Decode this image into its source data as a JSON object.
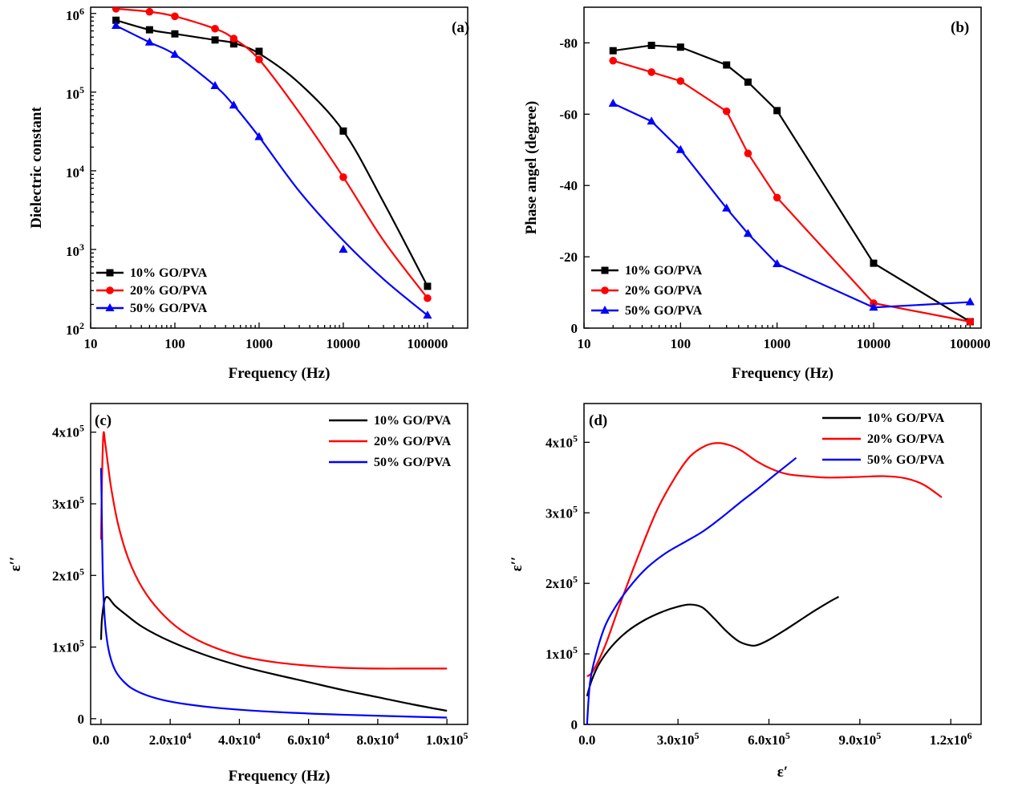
{
  "chart_data": [
    {
      "panel": "a",
      "type": "line",
      "label": "(a)",
      "xlabel": "Frequency (Hz)",
      "ylabel": "Dielectric constant",
      "xscale": "log",
      "yscale": "log",
      "xlim": [
        10,
        300000
      ],
      "ylim": [
        100,
        1200000
      ],
      "xticks": [
        10,
        100,
        1000,
        10000,
        100000
      ],
      "xtick_labels": [
        "10",
        "100",
        "1000",
        "10000",
        "100000"
      ],
      "yticks": [
        100,
        1000,
        10000,
        100000,
        1000000
      ],
      "ytick_base": "10",
      "ytick_exps": [
        "2",
        "3",
        "4",
        "5",
        "6"
      ],
      "legend_position": "bottom-left",
      "series": [
        {
          "name": "10% GO/PVA",
          "color": "#000000",
          "marker": "square",
          "x": [
            20,
            50,
            100,
            300,
            500,
            1000,
            10000,
            100000
          ],
          "y": [
            820000,
            620000,
            550000,
            460000,
            410000,
            330000,
            32000,
            340
          ],
          "fit": [
            [
              20,
              820000
            ],
            [
              50,
              620000
            ],
            [
              100,
              550000
            ],
            [
              300,
              460000
            ],
            [
              500,
              420000
            ],
            [
              1000,
              310000
            ],
            [
              3000,
              130000
            ],
            [
              10000,
              32000
            ],
            [
              30000,
              4000
            ],
            [
              100000,
              340
            ]
          ]
        },
        {
          "name": "20% GO/PVA",
          "color": "#ff0000",
          "marker": "circle",
          "x": [
            20,
            50,
            100,
            300,
            500,
            1000,
            10000,
            100000
          ],
          "y": [
            1150000,
            1050000,
            920000,
            640000,
            480000,
            260000,
            8300,
            240
          ],
          "fit": [
            [
              20,
              1150000
            ],
            [
              50,
              1050000
            ],
            [
              100,
              920000
            ],
            [
              300,
              640000
            ],
            [
              500,
              480000
            ],
            [
              1000,
              260000
            ],
            [
              3000,
              55000
            ],
            [
              10000,
              8300
            ],
            [
              30000,
              1300
            ],
            [
              100000,
              240
            ]
          ]
        },
        {
          "name": "50% GO/PVA",
          "color": "#0000ff",
          "marker": "triangle",
          "x": [
            20,
            50,
            100,
            300,
            500,
            1000,
            10000,
            100000
          ],
          "y": [
            700000,
            430000,
            300000,
            120000,
            68000,
            27000,
            1000,
            145
          ],
          "fit": [
            [
              20,
              700000
            ],
            [
              50,
              430000
            ],
            [
              100,
              300000
            ],
            [
              300,
              120000
            ],
            [
              500,
              68000
            ],
            [
              1000,
              27000
            ],
            [
              3000,
              5500
            ],
            [
              10000,
              1300
            ],
            [
              30000,
              420
            ],
            [
              100000,
              145
            ]
          ]
        }
      ]
    },
    {
      "panel": "b",
      "type": "line",
      "label": "(b)",
      "xlabel": "Frequency (Hz)",
      "ylabel": "Phase angel (degree)",
      "xscale": "log",
      "xlim": [
        10,
        130000
      ],
      "ylim": [
        0,
        -90
      ],
      "xticks": [
        10,
        100,
        1000,
        10000,
        100000
      ],
      "xtick_labels": [
        "10",
        "100",
        "1000",
        "10000",
        "100000"
      ],
      "yticks": [
        0,
        -20,
        -40,
        -60,
        -80
      ],
      "ytick_labels": [
        "0",
        "-20",
        "-40",
        "-60",
        "-80"
      ],
      "legend_position": "bottom-left",
      "series": [
        {
          "name": "10% GO/PVA",
          "color": "#000000",
          "marker": "square",
          "x": [
            20,
            50,
            100,
            300,
            500,
            1000,
            10000,
            100000
          ],
          "y": [
            -77.8,
            -79.3,
            -78.8,
            -73.8,
            -69.0,
            -61.0,
            -18.2,
            -1.8
          ]
        },
        {
          "name": "20% GO/PVA",
          "color": "#ff0000",
          "marker": "circle",
          "x": [
            20,
            50,
            100,
            300,
            500,
            1000,
            10000,
            100000
          ],
          "y": [
            -75.0,
            -71.8,
            -69.3,
            -60.8,
            -49.0,
            -36.6,
            -7.0,
            -1.8
          ]
        },
        {
          "name": "50% GO/PVA",
          "color": "#0000ff",
          "marker": "triangle",
          "x": [
            20,
            50,
            100,
            300,
            500,
            1000,
            10000,
            100000
          ],
          "y": [
            -63.0,
            -58.0,
            -50.0,
            -33.6,
            -26.5,
            -18.0,
            -5.8,
            -7.3
          ]
        }
      ]
    },
    {
      "panel": "c",
      "type": "line",
      "label": "(c)",
      "xlabel": "Frequency (Hz)",
      "ylabel": "ε′′",
      "xlim": [
        -3000,
        106000
      ],
      "ylim": [
        -8000,
        440000
      ],
      "xticks": [
        0,
        20000,
        40000,
        60000,
        80000,
        100000
      ],
      "xtick_labels": [
        "0.0",
        "2.0x10",
        "4.0x10",
        "6.0x10",
        "8.0x10",
        "1.0x10"
      ],
      "xtick_exps": [
        "",
        "4",
        "4",
        "4",
        "4",
        "5"
      ],
      "yticks": [
        0,
        100000,
        200000,
        300000,
        400000
      ],
      "ytick_labels": [
        "0",
        "1x10",
        "2x10",
        "3x10",
        "4x10"
      ],
      "ytick_exps": [
        "",
        "5",
        "5",
        "5",
        "5"
      ],
      "legend_position": "top-right",
      "series": [
        {
          "name": "10% GO/PVA",
          "color": "#000000",
          "x": [
            0,
            200,
            500,
            1000,
            1600,
            2500,
            4000,
            7000,
            12000,
            20000,
            30000,
            40000,
            50000,
            60000,
            70000,
            80000,
            90000,
            100000
          ],
          "y": [
            110000,
            135000,
            150000,
            165000,
            170000,
            167000,
            158000,
            146000,
            128000,
            108000,
            89000,
            74000,
            62000,
            51000,
            40000,
            30000,
            20000,
            11000
          ]
        },
        {
          "name": "20% GO/PVA",
          "color": "#ff0000",
          "x": [
            0,
            300,
            700,
            1200,
            2000,
            3000,
            5000,
            8000,
            12000,
            17000,
            23000,
            30000,
            40000,
            50000,
            60000,
            70000,
            80000,
            90000,
            100000
          ],
          "y": [
            250000,
            340000,
            398000,
            385000,
            355000,
            320000,
            270000,
            222000,
            182000,
            150000,
            124000,
            105000,
            88000,
            79000,
            74000,
            71000,
            70000,
            70000,
            70000
          ]
        },
        {
          "name": "50% GO/PVA",
          "color": "#0000ff",
          "x": [
            0,
            150,
            350,
            600,
            1000,
            1500,
            2200,
            3200,
            4500,
            6500,
            9000,
            13000,
            18000,
            25000,
            35000,
            50000,
            70000,
            100000
          ],
          "y": [
            350000,
            310000,
            240000,
            185000,
            145000,
            118000,
            96000,
            78000,
            64000,
            52000,
            42000,
            33000,
            26000,
            20000,
            14500,
            9500,
            5500,
            1500
          ]
        }
      ]
    },
    {
      "panel": "d",
      "type": "line",
      "label": "(d)",
      "xlabel": "ε′",
      "ylabel": "ε′′",
      "xlim": [
        -10000,
        1300000
      ],
      "ylim": [
        0,
        455000
      ],
      "xticks": [
        0,
        300000,
        600000,
        900000,
        1200000
      ],
      "xtick_labels": [
        "0.0",
        "3.0x10",
        "6.0x10",
        "9.0x10",
        "1.2x10"
      ],
      "xtick_exps": [
        "",
        "5",
        "5",
        "5",
        "6"
      ],
      "yticks": [
        0,
        100000,
        200000,
        300000,
        400000
      ],
      "ytick_labels": [
        "0",
        "1x10",
        "2x10",
        "3x10",
        "4x10"
      ],
      "ytick_exps": [
        "",
        "5",
        "5",
        "5",
        "5"
      ],
      "legend_position": "top-right",
      "series": [
        {
          "name": "10% GO/PVA",
          "color": "#000000",
          "x": [
            0,
            15000,
            40000,
            80000,
            130000,
            190000,
            250000,
            300000,
            340000,
            380000,
            420000,
            460000,
            500000,
            540000,
            565000,
            600000,
            650000,
            700000,
            750000,
            800000,
            830000
          ],
          "y": [
            40000,
            62000,
            86000,
            110000,
            131000,
            148000,
            160000,
            167000,
            170000,
            166000,
            150000,
            132000,
            118000,
            112000,
            113000,
            120000,
            133000,
            147000,
            161000,
            174000,
            181000
          ]
        },
        {
          "name": "20% GO/PVA",
          "color": "#ff0000",
          "x": [
            0,
            20000,
            60000,
            110000,
            170000,
            230000,
            290000,
            340000,
            390000,
            430000,
            470000,
            510000,
            560000,
            610000,
            660000,
            720000,
            800000,
            900000,
            980000,
            1050000,
            1110000,
            1170000
          ],
          "y": [
            68000,
            76000,
            112000,
            172000,
            240000,
            303000,
            350000,
            380000,
            395000,
            399000,
            396000,
            388000,
            373000,
            362000,
            355000,
            352000,
            350000,
            351000,
            352000,
            349000,
            340000,
            322000
          ]
        },
        {
          "name": "50% GO/PVA",
          "color": "#0000ff",
          "x": [
            0,
            10000,
            30000,
            60000,
            100000,
            150000,
            200000,
            260000,
            320000,
            380000,
            440000,
            500000,
            560000,
            620000,
            690000
          ],
          "y": [
            0,
            60000,
            100000,
            140000,
            171000,
            200000,
            223000,
            243000,
            258000,
            273000,
            292000,
            313000,
            333000,
            354000,
            378000
          ]
        }
      ]
    }
  ]
}
